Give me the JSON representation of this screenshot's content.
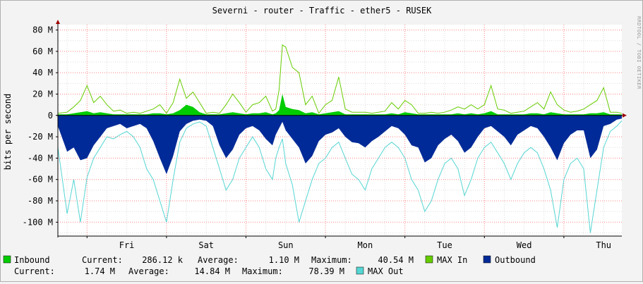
{
  "chart_data": {
    "type": "area",
    "title": "Severni - router - Traffic - ether5 - RUSEK",
    "ylabel": "bits per second",
    "watermark": "RRDTOOL / TOBI OETIKER",
    "ylim": [
      -113,
      85
    ],
    "y_ticks": [
      {
        "value": 80,
        "label": "80 M"
      },
      {
        "value": 60,
        "label": "60 M"
      },
      {
        "value": 40,
        "label": "40 M"
      },
      {
        "value": 20,
        "label": "20 M"
      },
      {
        "value": 0,
        "label": "0"
      },
      {
        "value": -20,
        "label": "-20 M"
      },
      {
        "value": -40,
        "label": "-40 M"
      },
      {
        "value": -60,
        "label": "-60 M"
      },
      {
        "value": -80,
        "label": "-80 M"
      },
      {
        "value": -100,
        "label": "-100 M"
      }
    ],
    "x_unit_note": "hours; day labels centered at noon",
    "xlim": [
      -8.8,
      161.5
    ],
    "x_ticks": [
      {
        "value": 12,
        "label": "Fri"
      },
      {
        "value": 36,
        "label": "Sat"
      },
      {
        "value": 60,
        "label": "Sun"
      },
      {
        "value": 84,
        "label": "Mon"
      },
      {
        "value": 108,
        "label": "Tue"
      },
      {
        "value": 132,
        "label": "Wed"
      },
      {
        "value": 156,
        "label": "Thu"
      }
    ],
    "grid": true,
    "colors": {
      "inbound": "#00cc00",
      "max_in": "#66cc00",
      "outbound": "#002a97",
      "max_out": "#55d6d3",
      "grid_major": "#ff8080",
      "grid_minor": "#dddddd",
      "plot_bg": "#ffffff"
    },
    "series": [
      {
        "name": "MAX In",
        "x": [
          -8.8,
          -6,
          -4,
          -2,
          0,
          2,
          4,
          6,
          8,
          10,
          12,
          14,
          16,
          18,
          20,
          22,
          24,
          26,
          28,
          30,
          32,
          34,
          36,
          38,
          40,
          42,
          44,
          46,
          48,
          50,
          52,
          54,
          56,
          57,
          58,
          59,
          60,
          62,
          64,
          66,
          68,
          70,
          72,
          74,
          76,
          78,
          80,
          82,
          84,
          86,
          88,
          90,
          92,
          94,
          96,
          98,
          100,
          102,
          104,
          106,
          108,
          110,
          112,
          114,
          116,
          118,
          120,
          122,
          124,
          126,
          128,
          130,
          132,
          134,
          136,
          138,
          140,
          142,
          144,
          146,
          148,
          150,
          152,
          154,
          156,
          158,
          160,
          161.5
        ],
        "values": [
          2,
          3,
          8,
          14,
          28,
          12,
          18,
          10,
          4,
          5,
          2,
          3,
          2,
          4,
          6,
          10,
          2,
          12,
          34,
          16,
          22,
          12,
          2,
          3,
          2,
          10,
          20,
          12,
          3,
          10,
          12,
          18,
          4,
          6,
          24,
          66,
          64,
          45,
          40,
          10,
          18,
          2,
          10,
          14,
          36,
          6,
          3,
          3,
          3,
          2,
          3,
          4,
          12,
          6,
          14,
          10,
          2,
          2,
          3,
          2,
          3,
          5,
          8,
          6,
          10,
          6,
          10,
          28,
          6,
          5,
          2,
          3,
          4,
          8,
          12,
          6,
          22,
          10,
          5,
          3,
          4,
          6,
          10,
          14,
          26,
          3,
          3,
          2
        ]
      },
      {
        "name": "Inbound",
        "x": [
          -8.8,
          -6,
          -4,
          -2,
          0,
          2,
          4,
          6,
          8,
          10,
          12,
          14,
          16,
          18,
          20,
          22,
          24,
          26,
          28,
          30,
          32,
          34,
          36,
          38,
          40,
          42,
          44,
          46,
          48,
          50,
          52,
          54,
          56,
          57,
          58,
          59,
          60,
          62,
          64,
          66,
          68,
          70,
          72,
          74,
          76,
          78,
          80,
          82,
          84,
          86,
          88,
          90,
          92,
          94,
          96,
          98,
          100,
          102,
          104,
          106,
          108,
          110,
          112,
          114,
          116,
          118,
          120,
          122,
          124,
          126,
          128,
          130,
          132,
          134,
          136,
          138,
          140,
          142,
          144,
          146,
          148,
          150,
          152,
          154,
          156,
          158,
          160,
          161.5
        ],
        "values": [
          1,
          1,
          2,
          3,
          4,
          2,
          3,
          2,
          1,
          1,
          1,
          1,
          1,
          1,
          2,
          2,
          1,
          2,
          5,
          10,
          8,
          3,
          1,
          1,
          1,
          2,
          3,
          2,
          1,
          2,
          2,
          3,
          1,
          2,
          5,
          20,
          8,
          6,
          5,
          2,
          3,
          1,
          2,
          3,
          4,
          1,
          1,
          1,
          1,
          1,
          1,
          1,
          2,
          1,
          3,
          2,
          1,
          1,
          1,
          1,
          1,
          1,
          2,
          1,
          2,
          1,
          2,
          4,
          1,
          1,
          1,
          1,
          1,
          2,
          2,
          1,
          3,
          2,
          1,
          1,
          1,
          1,
          2,
          2,
          3,
          1,
          1,
          1
        ]
      },
      {
        "name": "Outbound",
        "x": [
          -8.8,
          -6,
          -4,
          -2,
          0,
          2,
          4,
          6,
          8,
          10,
          12,
          14,
          16,
          18,
          20,
          22,
          24,
          26,
          28,
          30,
          32,
          34,
          36,
          38,
          40,
          42,
          44,
          46,
          48,
          50,
          52,
          54,
          56,
          57,
          58,
          59,
          60,
          62,
          64,
          66,
          68,
          70,
          72,
          74,
          76,
          78,
          80,
          82,
          84,
          86,
          88,
          90,
          92,
          94,
          96,
          98,
          100,
          102,
          104,
          106,
          108,
          110,
          112,
          114,
          116,
          118,
          120,
          122,
          124,
          126,
          128,
          130,
          132,
          134,
          136,
          138,
          140,
          142,
          144,
          146,
          148,
          150,
          152,
          154,
          156,
          158,
          160,
          161.5
        ],
        "values": [
          -10,
          -34,
          -30,
          -42,
          -40,
          -28,
          -20,
          -12,
          -10,
          -8,
          -12,
          -10,
          -8,
          -12,
          -24,
          -40,
          -55,
          -38,
          -15,
          -8,
          -5,
          -4,
          -5,
          -10,
          -28,
          -40,
          -32,
          -18,
          -12,
          -10,
          -14,
          -22,
          -28,
          -18,
          -12,
          -6,
          -14,
          -22,
          -30,
          -45,
          -38,
          -24,
          -18,
          -16,
          -12,
          -20,
          -25,
          -26,
          -30,
          -24,
          -20,
          -15,
          -10,
          -12,
          -18,
          -28,
          -30,
          -44,
          -40,
          -28,
          -22,
          -18,
          -24,
          -35,
          -30,
          -20,
          -12,
          -10,
          -15,
          -20,
          -28,
          -18,
          -14,
          -10,
          -12,
          -20,
          -30,
          -42,
          -26,
          -18,
          -14,
          -14,
          -40,
          -32,
          -10,
          -8,
          -4,
          -3
        ]
      },
      {
        "name": "MAX Out",
        "x": [
          -8.8,
          -6,
          -4,
          -2,
          0,
          2,
          4,
          6,
          8,
          10,
          12,
          14,
          16,
          18,
          20,
          22,
          24,
          26,
          28,
          30,
          32,
          34,
          36,
          38,
          40,
          42,
          44,
          46,
          48,
          50,
          52,
          54,
          56,
          57,
          58,
          59,
          60,
          62,
          64,
          66,
          68,
          70,
          72,
          74,
          76,
          78,
          80,
          82,
          84,
          86,
          88,
          90,
          92,
          94,
          96,
          98,
          100,
          102,
          104,
          106,
          108,
          110,
          112,
          114,
          116,
          118,
          120,
          122,
          124,
          126,
          128,
          130,
          132,
          134,
          136,
          138,
          140,
          142,
          144,
          146,
          148,
          150,
          152,
          154,
          156,
          158,
          160,
          161.5
        ],
        "values": [
          -30,
          -92,
          -60,
          -100,
          -58,
          -40,
          -30,
          -20,
          -22,
          -18,
          -15,
          -20,
          -30,
          -50,
          -60,
          -80,
          -100,
          -60,
          -25,
          -12,
          -8,
          -6,
          -10,
          -30,
          -50,
          -70,
          -60,
          -40,
          -30,
          -20,
          -30,
          -50,
          -60,
          -40,
          -30,
          -22,
          -45,
          -65,
          -100,
          -80,
          -60,
          -45,
          -40,
          -30,
          -25,
          -40,
          -55,
          -60,
          -70,
          -50,
          -40,
          -30,
          -25,
          -30,
          -40,
          -60,
          -70,
          -90,
          -80,
          -60,
          -45,
          -40,
          -50,
          -75,
          -60,
          -40,
          -30,
          -25,
          -35,
          -45,
          -60,
          -45,
          -35,
          -30,
          -35,
          -50,
          -70,
          -105,
          -60,
          -45,
          -40,
          -50,
          -110,
          -70,
          -30,
          -15,
          -10,
          -5
        ]
      }
    ]
  },
  "legend": {
    "inbound_label": "Inbound",
    "in_current_label": "Current:",
    "in_current": "286.12 k",
    "in_average_label": "Average:",
    "in_average": "1.10 M",
    "in_maximum_label": "Maximum:",
    "in_maximum": "40.54 M",
    "max_in_label": "MAX In",
    "outbound_label": "Outbound",
    "out_current_label": "Current:",
    "out_current": "1.74 M",
    "out_average_label": "Average:",
    "out_average": "14.84 M",
    "out_maximum_label": "Maximum:",
    "out_maximum": "78.39 M",
    "max_out_label": "MAX Out"
  }
}
